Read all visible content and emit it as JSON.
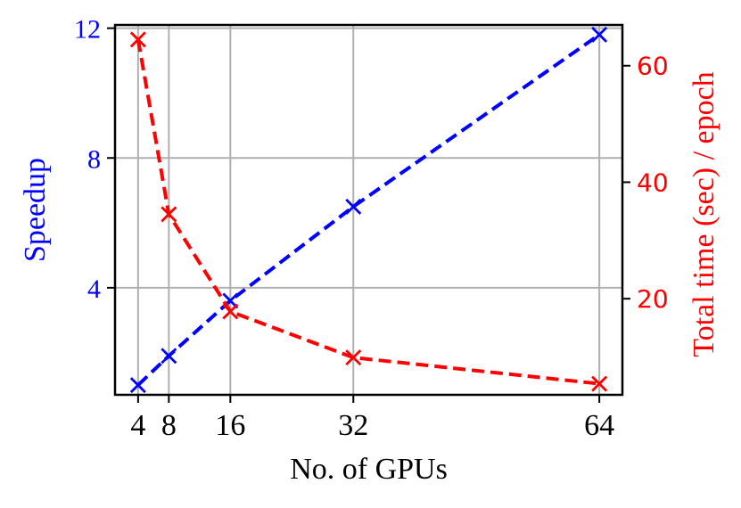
{
  "chart_data": {
    "type": "line",
    "xlabel": "No. of GPUs",
    "ylabel": "Speedup",
    "y2label": "Total time (sec) / epoch",
    "x": [
      4,
      8,
      16,
      32,
      64
    ],
    "xticks": [
      "4",
      "8",
      "16",
      "32",
      "64"
    ],
    "xlim": [
      1,
      67
    ],
    "ylim": [
      0.7,
      12.1
    ],
    "yticks": [
      4,
      8,
      12
    ],
    "y2lim": [
      3.5,
      67
    ],
    "y2ticks": [
      20,
      40,
      60
    ],
    "grid": true,
    "series": [
      {
        "axis": "left",
        "color": "#0000ff",
        "linestyle": "dashed",
        "marker": "x",
        "values": [
          1.0,
          1.9,
          3.6,
          6.5,
          11.8
        ]
      },
      {
        "axis": "right",
        "color": "#ff0000",
        "linestyle": "dashed",
        "marker": "x",
        "values": [
          64.5,
          34.5,
          17.8,
          9.9,
          5.4
        ]
      }
    ]
  }
}
